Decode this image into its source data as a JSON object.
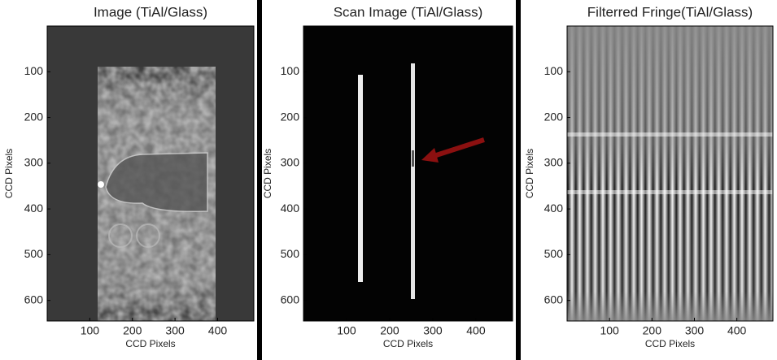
{
  "chart_data": [
    {
      "type": "image",
      "title": "Image (TiAl/Glass)",
      "xlabel": "CCD Pixels",
      "ylabel": "CCD Pixels",
      "xlim": [
        0,
        485
      ],
      "ylim": [
        0,
        645
      ],
      "xticks": [
        100,
        200,
        300,
        400
      ],
      "yticks": [
        100,
        200,
        300,
        400,
        500,
        600
      ]
    },
    {
      "type": "image",
      "title": "Scan Image (TiAl/Glass)",
      "xlabel": "CCD Pixels",
      "ylabel": "CCD Pixels",
      "xlim": [
        0,
        485
      ],
      "ylim": [
        0,
        645
      ],
      "xticks": [
        100,
        200,
        300,
        400
      ],
      "yticks": [
        100,
        200,
        300,
        400,
        500,
        600
      ]
    },
    {
      "type": "image",
      "title": "Filterred Fringe(TiAl/Glass)",
      "xlabel": "CCD Pixels",
      "ylabel": "CCD Pixels",
      "xlim": [
        0,
        485
      ],
      "ylim": [
        0,
        645
      ],
      "xticks": [
        100,
        200,
        300,
        400
      ],
      "yticks": [
        100,
        200,
        300,
        400,
        500,
        600
      ]
    }
  ]
}
